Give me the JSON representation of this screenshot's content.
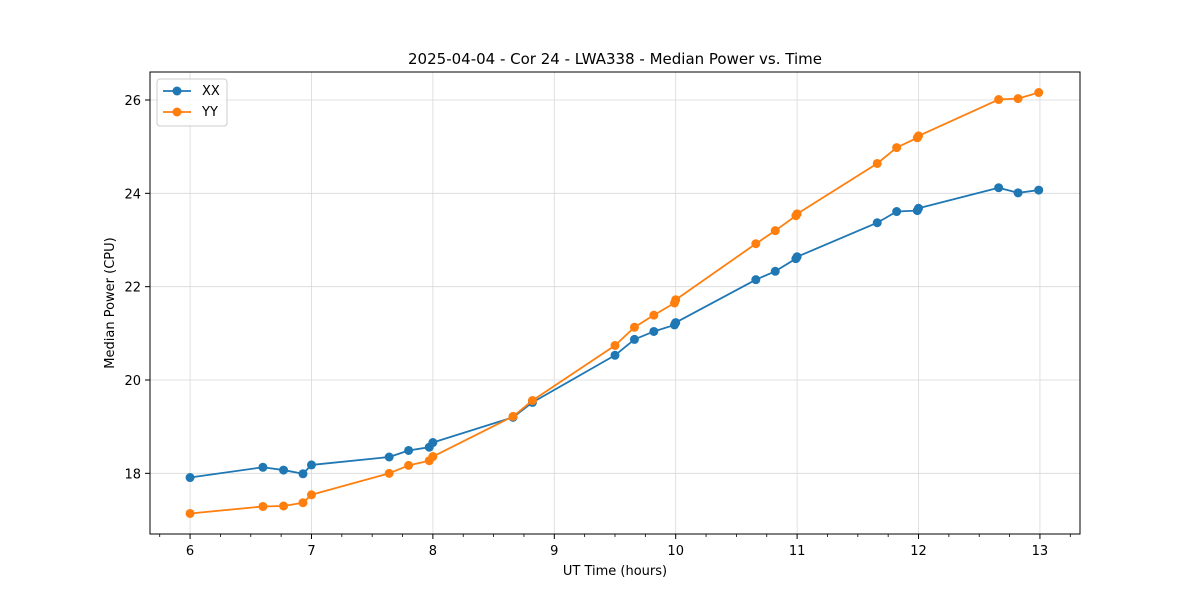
{
  "chart_data": {
    "type": "line",
    "title": "2025-04-04 - Cor 24 - LWA338 - Median Power vs. Time",
    "xlabel": "UT Time (hours)",
    "ylabel": "Median Power (CPU)",
    "xlim": [
      5.67,
      13.33
    ],
    "ylim": [
      16.7,
      26.6
    ],
    "x_ticks": [
      6,
      7,
      8,
      9,
      10,
      11,
      12,
      13
    ],
    "x_tick_labels": [
      "6",
      "7",
      "8",
      "9",
      "10",
      "11",
      "12",
      "13"
    ],
    "y_ticks": [
      18,
      20,
      22,
      24,
      26
    ],
    "y_tick_labels": [
      "18",
      "20",
      "22",
      "24",
      "26"
    ],
    "grid": true,
    "legend_position": "top-left",
    "series": [
      {
        "name": "XX",
        "color": "#1f77b4",
        "x": [
          6.0,
          6.6,
          6.77,
          6.93,
          7.0,
          7.64,
          7.8,
          7.97,
          8.0,
          8.66,
          8.82,
          9.5,
          9.66,
          9.82,
          9.99,
          10.0,
          10.66,
          10.82,
          10.99,
          11.0,
          11.66,
          11.82,
          11.99,
          12.0,
          12.66,
          12.82,
          12.99
        ],
        "y": [
          17.91,
          18.13,
          18.07,
          17.99,
          18.18,
          18.35,
          18.49,
          18.56,
          18.66,
          19.2,
          19.52,
          20.53,
          20.87,
          21.04,
          21.18,
          21.23,
          22.15,
          22.33,
          22.6,
          22.64,
          23.37,
          23.61,
          23.63,
          23.68,
          24.12,
          24.01,
          24.07
        ]
      },
      {
        "name": "YY",
        "color": "#ff7f0e",
        "x": [
          6.0,
          6.6,
          6.77,
          6.93,
          7.0,
          7.64,
          7.8,
          7.97,
          8.0,
          8.66,
          8.82,
          9.5,
          9.66,
          9.82,
          9.99,
          10.0,
          10.66,
          10.82,
          10.99,
          11.0,
          11.66,
          11.82,
          11.99,
          12.0,
          12.66,
          12.82,
          12.99
        ],
        "y": [
          17.14,
          17.29,
          17.3,
          17.37,
          17.54,
          18.0,
          18.17,
          18.27,
          18.36,
          19.22,
          19.56,
          20.74,
          21.13,
          21.39,
          21.65,
          21.72,
          22.92,
          23.2,
          23.52,
          23.56,
          24.64,
          24.98,
          25.19,
          25.23,
          26.01,
          26.03,
          26.16
        ]
      }
    ]
  }
}
